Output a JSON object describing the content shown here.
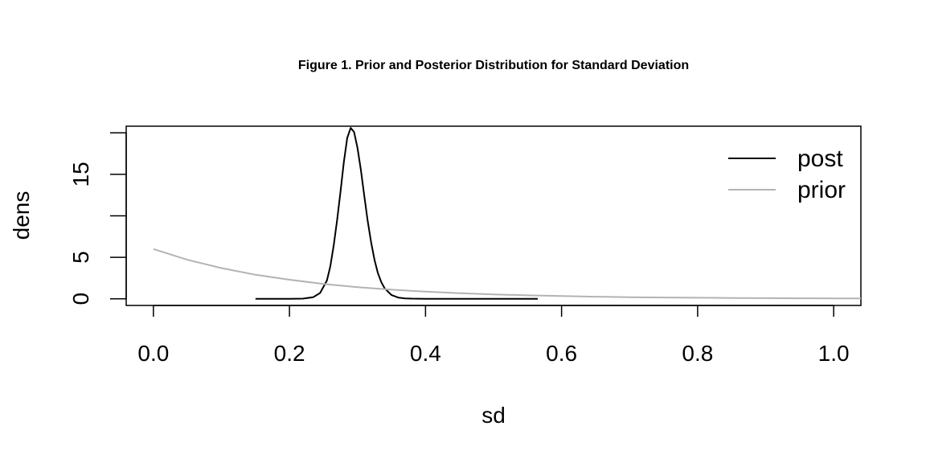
{
  "chart_data": {
    "type": "line",
    "title": "Figure 1. Prior and Posterior Distribution for Standard Deviation",
    "xlabel": "sd",
    "ylabel": "dens",
    "xlim": [
      -0.04,
      1.04
    ],
    "ylim": [
      -0.8,
      20.8
    ],
    "x_ticks": [
      0.0,
      0.2,
      0.4,
      0.6,
      0.8,
      1.0
    ],
    "x_tick_labels": [
      "0.0",
      "0.2",
      "0.4",
      "0.6",
      "0.8",
      "1.0"
    ],
    "y_ticks": [
      0,
      5,
      10,
      15,
      20
    ],
    "y_tick_labels": [
      "0",
      "5",
      "",
      "15",
      ""
    ],
    "grid": false,
    "legend_position": "top-right",
    "series": [
      {
        "name": "post",
        "color": "#000000",
        "x": [
          0.15,
          0.2,
          0.22,
          0.235,
          0.245,
          0.255,
          0.26,
          0.265,
          0.27,
          0.275,
          0.28,
          0.285,
          0.29,
          0.295,
          0.3,
          0.305,
          0.31,
          0.315,
          0.32,
          0.325,
          0.33,
          0.335,
          0.34,
          0.35,
          0.36,
          0.37,
          0.38,
          0.4,
          0.45,
          0.5,
          0.565
        ],
        "y": [
          0,
          0,
          0.02,
          0.2,
          0.7,
          2.2,
          3.9,
          6.4,
          9.5,
          12.9,
          16.5,
          19.4,
          20.6,
          20.1,
          18.2,
          15.5,
          12.4,
          9.4,
          6.8,
          4.7,
          3.1,
          2.0,
          1.25,
          0.45,
          0.15,
          0.05,
          0.02,
          0,
          0,
          0,
          0
        ]
      },
      {
        "name": "prior",
        "color": "#b3b3b3",
        "x": [
          0.0,
          0.05,
          0.1,
          0.15,
          0.2,
          0.25,
          0.3,
          0.35,
          0.4,
          0.45,
          0.5,
          0.55,
          0.6,
          0.65,
          0.7,
          0.75,
          0.8,
          0.85,
          0.9,
          0.95,
          1.0,
          1.04
        ],
        "y": [
          6.0,
          4.7,
          3.7,
          2.9,
          2.3,
          1.8,
          1.4,
          1.1,
          0.87,
          0.68,
          0.54,
          0.42,
          0.33,
          0.26,
          0.2,
          0.16,
          0.13,
          0.1,
          0.08,
          0.06,
          0.05,
          0.04
        ]
      }
    ]
  }
}
